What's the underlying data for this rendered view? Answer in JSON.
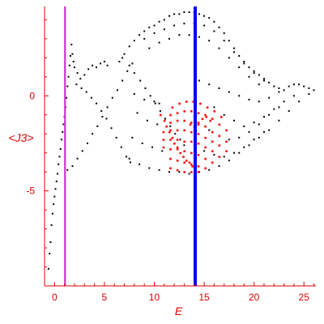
{
  "colors": {
    "axis": "#e00000",
    "black_points": "#000000",
    "red_points": "#ff1010",
    "magenta_line": "#cc33cc",
    "blue_line": "#0000ee"
  },
  "chart_data": {
    "type": "scatter",
    "title": "",
    "xlabel": "E",
    "ylabel": "<J3>",
    "xlim": [
      -1,
      26.2
    ],
    "ylim": [
      -10,
      4.7
    ],
    "x_ticks": [
      {
        "value": 0,
        "label": "0"
      },
      {
        "value": 5,
        "label": "5"
      },
      {
        "value": 10,
        "label": "10"
      },
      {
        "value": 15,
        "label": "15"
      },
      {
        "value": 20,
        "label": "20"
      },
      {
        "value": 25,
        "label": "25"
      }
    ],
    "y_ticks": [
      {
        "value": 0,
        "label": "0"
      },
      {
        "value": -5,
        "label": "-5"
      }
    ],
    "grid": false,
    "vlines": [
      {
        "x": 1.05,
        "color": "magenta"
      },
      {
        "x": 14.1,
        "color": "blue"
      }
    ],
    "series": [
      {
        "color": "black",
        "points": [
          [
            -0.6,
            -9.1
          ],
          [
            -0.5,
            -8.3
          ],
          [
            -0.4,
            -7.7
          ],
          [
            -0.3,
            -6.8
          ],
          [
            -0.2,
            -6.2
          ],
          [
            -0.1,
            -5.7
          ],
          [
            0.0,
            -5.3
          ],
          [
            0.1,
            -4.9
          ],
          [
            0.2,
            -4.5
          ],
          [
            0.3,
            -4.1
          ],
          [
            0.4,
            -3.6
          ],
          [
            0.5,
            -3.2
          ],
          [
            0.6,
            -2.8
          ],
          [
            0.7,
            -2.3
          ],
          [
            0.8,
            -1.9
          ],
          [
            0.9,
            -1.5
          ],
          [
            1.0,
            -1.1
          ],
          [
            1.1,
            -0.6
          ],
          [
            1.2,
            -0.1
          ],
          [
            1.3,
            0.5
          ],
          [
            1.4,
            1.0
          ],
          [
            1.5,
            1.6
          ],
          [
            1.6,
            2.1
          ],
          [
            1.7,
            2.7
          ],
          [
            1.8,
            2.2
          ],
          [
            1.9,
            1.8
          ],
          [
            2.0,
            1.5
          ],
          [
            2.3,
            1.2
          ],
          [
            2.6,
            0.9
          ],
          [
            3.0,
            1.1
          ],
          [
            3.4,
            1.4
          ],
          [
            3.8,
            1.6
          ],
          [
            4.2,
            1.5
          ],
          [
            4.6,
            1.7
          ],
          [
            5.0,
            1.8
          ],
          [
            5.3,
            1.6
          ],
          [
            1.3,
            -3.9
          ],
          [
            1.8,
            -3.7
          ],
          [
            2.3,
            -3.3
          ],
          [
            2.8,
            -2.9
          ],
          [
            3.3,
            -2.5
          ],
          [
            3.8,
            -2.0
          ],
          [
            4.3,
            -1.6
          ],
          [
            4.8,
            -1.1
          ],
          [
            5.3,
            -0.6
          ],
          [
            5.8,
            -0.1
          ],
          [
            6.3,
            0.3
          ],
          [
            6.8,
            0.8
          ],
          [
            7.3,
            1.3
          ],
          [
            7.8,
            1.7
          ],
          [
            2.2,
            0.6
          ],
          [
            2.7,
            0.4
          ],
          [
            3.2,
            0.2
          ],
          [
            3.7,
            -0.1
          ],
          [
            4.2,
            -0.4
          ],
          [
            4.7,
            -0.8
          ],
          [
            5.2,
            -1.2
          ],
          [
            5.7,
            -1.7
          ],
          [
            6.2,
            -2.2
          ],
          [
            6.7,
            -2.7
          ],
          [
            7.2,
            -3.2
          ],
          [
            7.6,
            -3.5
          ],
          [
            6.5,
            1.8
          ],
          [
            7.0,
            2.2
          ],
          [
            7.5,
            2.6
          ],
          [
            8.0,
            2.9
          ],
          [
            8.5,
            3.2
          ],
          [
            9.0,
            3.4
          ],
          [
            9.5,
            3.6
          ],
          [
            10.0,
            3.7
          ],
          [
            10.5,
            3.9
          ],
          [
            11.0,
            4.0
          ],
          [
            11.5,
            4.2
          ],
          [
            12.0,
            4.3
          ],
          [
            12.5,
            4.3
          ],
          [
            13.0,
            4.4
          ],
          [
            13.5,
            4.4
          ],
          [
            14.0,
            4.4
          ],
          [
            14.5,
            4.3
          ],
          [
            15.0,
            4.2
          ],
          [
            15.5,
            4.1
          ],
          [
            16.0,
            3.9
          ],
          [
            16.5,
            3.6
          ],
          [
            17.0,
            3.3
          ],
          [
            17.5,
            2.9
          ],
          [
            18.0,
            2.5
          ],
          [
            18.5,
            2.1
          ],
          [
            19.0,
            1.8
          ],
          [
            19.5,
            1.5
          ],
          [
            20.0,
            1.3
          ],
          [
            20.5,
            1.1
          ],
          [
            21.0,
            0.9
          ],
          [
            21.5,
            0.7
          ],
          [
            22.0,
            0.5
          ],
          [
            22.5,
            0.4
          ],
          [
            23.0,
            0.3
          ],
          [
            23.5,
            0.5
          ],
          [
            24.0,
            0.6
          ],
          [
            24.5,
            0.6
          ],
          [
            25.0,
            0.5
          ],
          [
            25.5,
            0.4
          ],
          [
            26.0,
            0.3
          ],
          [
            9.0,
            3.0
          ],
          [
            10.0,
            3.3
          ],
          [
            11.0,
            3.5
          ],
          [
            12.0,
            3.7
          ],
          [
            13.0,
            3.8
          ],
          [
            14.0,
            3.8
          ],
          [
            15.0,
            3.7
          ],
          [
            16.0,
            3.4
          ],
          [
            17.0,
            2.9
          ],
          [
            18.0,
            2.3
          ],
          [
            19.0,
            1.7
          ],
          [
            20.0,
            1.2
          ],
          [
            21.0,
            0.8
          ],
          [
            9.5,
            2.5
          ],
          [
            10.5,
            2.8
          ],
          [
            11.5,
            3.0
          ],
          [
            12.5,
            3.2
          ],
          [
            13.5,
            3.2
          ],
          [
            14.5,
            3.1
          ],
          [
            15.5,
            2.9
          ],
          [
            16.5,
            2.5
          ],
          [
            17.5,
            2.0
          ],
          [
            18.5,
            1.5
          ],
          [
            19.5,
            1.0
          ],
          [
            20.5,
            0.6
          ],
          [
            6.8,
            2.0
          ],
          [
            7.5,
            1.6
          ],
          [
            8.0,
            1.2
          ],
          [
            8.6,
            0.8
          ],
          [
            9.1,
            0.4
          ],
          [
            9.6,
            0.0
          ],
          [
            10.1,
            -0.4
          ],
          [
            10.6,
            -0.8
          ],
          [
            11.1,
            -1.2
          ],
          [
            11.6,
            -1.6
          ],
          [
            12.1,
            -2.0
          ],
          [
            12.6,
            -2.3
          ],
          [
            13.0,
            -2.6
          ],
          [
            8.0,
            0.1
          ],
          [
            9.0,
            -0.2
          ],
          [
            10.0,
            -0.3
          ],
          [
            10.5,
            -0.4
          ],
          [
            8.3,
            -0.9
          ],
          [
            9.3,
            -1.3
          ],
          [
            10.3,
            -1.5
          ],
          [
            7.8,
            -2.2
          ],
          [
            8.8,
            -2.5
          ],
          [
            9.8,
            -2.7
          ],
          [
            10.8,
            -2.9
          ],
          [
            7.5,
            -3.3
          ],
          [
            8.5,
            -3.6
          ],
          [
            9.5,
            -3.8
          ],
          [
            10.5,
            -3.9
          ],
          [
            11.5,
            -4.0
          ],
          [
            12.5,
            -4.0
          ],
          [
            13.5,
            -4.1
          ],
          [
            14.5,
            -4.0
          ],
          [
            15.5,
            -3.9
          ],
          [
            16.5,
            -3.7
          ],
          [
            17.5,
            -3.4
          ],
          [
            18.5,
            -3.0
          ],
          [
            19.5,
            -2.6
          ],
          [
            20.5,
            -2.2
          ],
          [
            21.5,
            -1.8
          ],
          [
            22.5,
            -1.3
          ],
          [
            23.5,
            -0.8
          ],
          [
            24.5,
            -0.3
          ],
          [
            25.5,
            0.1
          ],
          [
            16.0,
            -0.6
          ],
          [
            17.0,
            -1.0
          ],
          [
            18.0,
            -1.3
          ],
          [
            19.0,
            -1.6
          ],
          [
            20.0,
            -1.4
          ],
          [
            21.0,
            -1.1
          ],
          [
            22.0,
            -0.7
          ],
          [
            23.0,
            -0.3
          ],
          [
            24.0,
            0.0
          ],
          [
            15.5,
            -1.8
          ],
          [
            16.5,
            -2.1
          ],
          [
            17.5,
            -2.3
          ],
          [
            18.5,
            -2.2
          ],
          [
            19.5,
            -1.9
          ],
          [
            20.5,
            -1.5
          ],
          [
            21.5,
            -1.0
          ],
          [
            22.5,
            -0.6
          ],
          [
            15.0,
            -2.9
          ],
          [
            16.0,
            -3.1
          ],
          [
            17.0,
            -3.2
          ],
          [
            18.0,
            -3.0
          ],
          [
            19.0,
            -2.7
          ],
          [
            20.0,
            -2.3
          ],
          [
            21.0,
            -1.9
          ],
          [
            14.5,
            0.8
          ],
          [
            15.5,
            0.6
          ],
          [
            16.5,
            0.4
          ],
          [
            17.5,
            0.2
          ],
          [
            18.5,
            0.0
          ],
          [
            19.5,
            -0.2
          ],
          [
            20.5,
            -0.3
          ],
          [
            21.5,
            -0.1
          ],
          [
            22.5,
            0.2
          ]
        ]
      },
      {
        "color": "red",
        "points": [
          [
            10.6,
            -1.0
          ],
          [
            11.0,
            -1.3
          ],
          [
            11.2,
            -1.6
          ],
          [
            11.5,
            -1.9
          ],
          [
            11.8,
            -2.2
          ],
          [
            12.0,
            -2.5
          ],
          [
            12.3,
            -2.7
          ],
          [
            12.6,
            -3.0
          ],
          [
            12.9,
            -3.2
          ],
          [
            13.2,
            -3.4
          ],
          [
            13.5,
            -3.5
          ],
          [
            13.8,
            -3.7
          ],
          [
            11.8,
            -0.6
          ],
          [
            12.5,
            -0.4
          ],
          [
            13.2,
            -0.3
          ],
          [
            13.9,
            -0.3
          ],
          [
            14.6,
            -0.4
          ],
          [
            15.3,
            -0.6
          ],
          [
            16.0,
            -0.8
          ],
          [
            16.7,
            -1.1
          ],
          [
            11.6,
            -1.0
          ],
          [
            12.3,
            -0.9
          ],
          [
            13.0,
            -0.8
          ],
          [
            13.7,
            -0.8
          ],
          [
            14.4,
            -0.9
          ],
          [
            15.1,
            -1.0
          ],
          [
            15.8,
            -1.2
          ],
          [
            16.5,
            -1.5
          ],
          [
            17.2,
            -1.8
          ],
          [
            11.6,
            -1.4
          ],
          [
            12.3,
            -1.3
          ],
          [
            13.0,
            -1.3
          ],
          [
            13.7,
            -1.4
          ],
          [
            14.4,
            -1.5
          ],
          [
            15.1,
            -1.6
          ],
          [
            15.8,
            -1.9
          ],
          [
            16.5,
            -2.1
          ],
          [
            17.2,
            -2.4
          ],
          [
            11.6,
            -1.8
          ],
          [
            12.3,
            -1.8
          ],
          [
            13.0,
            -1.8
          ],
          [
            13.7,
            -1.9
          ],
          [
            14.4,
            -2.0
          ],
          [
            15.1,
            -2.2
          ],
          [
            15.8,
            -2.4
          ],
          [
            16.5,
            -2.6
          ],
          [
            17.2,
            -2.9
          ],
          [
            11.6,
            -2.3
          ],
          [
            12.3,
            -2.3
          ],
          [
            13.0,
            -2.4
          ],
          [
            13.7,
            -2.4
          ],
          [
            14.4,
            -2.5
          ],
          [
            15.1,
            -2.7
          ],
          [
            15.8,
            -2.9
          ],
          [
            16.5,
            -3.2
          ],
          [
            11.6,
            -2.8
          ],
          [
            12.3,
            -2.8
          ],
          [
            13.0,
            -2.9
          ],
          [
            13.7,
            -3.0
          ],
          [
            14.4,
            -3.1
          ],
          [
            15.1,
            -3.3
          ],
          [
            15.8,
            -3.5
          ],
          [
            11.6,
            -3.3
          ],
          [
            12.3,
            -3.4
          ],
          [
            13.0,
            -3.5
          ],
          [
            13.7,
            -3.6
          ],
          [
            14.4,
            -3.7
          ],
          [
            15.1,
            -3.8
          ],
          [
            11.6,
            -3.8
          ],
          [
            12.3,
            -3.9
          ],
          [
            13.0,
            -4.0
          ],
          [
            13.7,
            -4.0
          ],
          [
            14.4,
            -4.0
          ],
          [
            13.6,
            -1.5
          ],
          [
            14.0,
            -1.6
          ],
          [
            14.4,
            -1.4
          ],
          [
            14.8,
            -1.2
          ],
          [
            15.2,
            -1.1
          ],
          [
            15.6,
            -1.3
          ],
          [
            10.9,
            -1.9
          ],
          [
            10.9,
            -2.3
          ],
          [
            10.9,
            -2.7
          ]
        ]
      }
    ]
  }
}
